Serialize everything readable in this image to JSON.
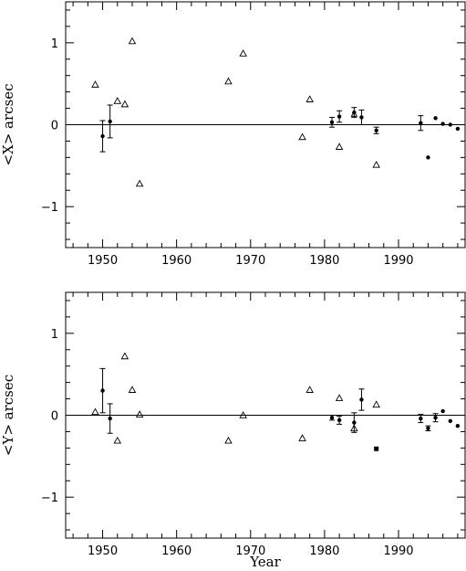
{
  "chart_data": [
    {
      "type": "scatter",
      "ylabel": "<X> arcsec",
      "xlabel": "",
      "xlim": [
        1945,
        1999
      ],
      "ylim": [
        -1.5,
        1.5
      ],
      "x_ticks": [
        "1950",
        "1960",
        "1970",
        "1980",
        "1990"
      ],
      "y_ticks": [
        "−1",
        "0",
        "1"
      ],
      "zero_line": true,
      "series": [
        {
          "marker": "open-triangle",
          "points": [
            {
              "x": 1949,
              "y": 0.49
            },
            {
              "x": 1952,
              "y": 0.29
            },
            {
              "x": 1953,
              "y": 0.25
            },
            {
              "x": 1954,
              "y": 1.02
            },
            {
              "x": 1955,
              "y": -0.72
            },
            {
              "x": 1967,
              "y": 0.53
            },
            {
              "x": 1969,
              "y": 0.87
            },
            {
              "x": 1977,
              "y": -0.15
            },
            {
              "x": 1978,
              "y": 0.31
            },
            {
              "x": 1982,
              "y": -0.27
            },
            {
              "x": 1987,
              "y": -0.49
            }
          ]
        },
        {
          "marker": "filled-circle",
          "points": [
            {
              "x": 1950,
              "y": -0.14,
              "err": 0.19
            },
            {
              "x": 1951,
              "y": 0.04,
              "err": 0.2
            },
            {
              "x": 1981,
              "y": 0.03,
              "err": 0.06
            },
            {
              "x": 1982,
              "y": 0.1,
              "err": 0.07
            },
            {
              "x": 1984,
              "y": 0.15,
              "err": 0.06
            },
            {
              "x": 1985,
              "y": 0.09,
              "err": 0.09
            },
            {
              "x": 1987,
              "y": -0.07,
              "err": 0.04
            },
            {
              "x": 1993,
              "y": 0.02,
              "err": 0.09
            },
            {
              "x": 1994,
              "y": -0.4,
              "err": 0
            },
            {
              "x": 1995,
              "y": 0.08,
              "err": 0
            },
            {
              "x": 1996,
              "y": 0.01,
              "err": 0
            },
            {
              "x": 1997,
              "y": 0.0,
              "err": 0
            },
            {
              "x": 1998,
              "y": -0.05,
              "err": 0
            }
          ]
        },
        {
          "marker": "open-triangle-small",
          "points": [
            {
              "x": 1984,
              "y": 0.13
            }
          ]
        }
      ]
    },
    {
      "type": "scatter",
      "ylabel": "<Y> arcsec",
      "xlabel": "Year",
      "xlim": [
        1945,
        1999
      ],
      "ylim": [
        -1.5,
        1.5
      ],
      "x_ticks": [
        "1950",
        "1960",
        "1970",
        "1980",
        "1990"
      ],
      "y_ticks": [
        "−1",
        "0",
        "1"
      ],
      "zero_line": true,
      "series": [
        {
          "marker": "open-triangle",
          "points": [
            {
              "x": 1949,
              "y": 0.04
            },
            {
              "x": 1952,
              "y": -0.31
            },
            {
              "x": 1953,
              "y": 0.72
            },
            {
              "x": 1954,
              "y": 0.31
            },
            {
              "x": 1955,
              "y": 0.01
            },
            {
              "x": 1967,
              "y": -0.31
            },
            {
              "x": 1969,
              "y": 0.0
            },
            {
              "x": 1977,
              "y": -0.28
            },
            {
              "x": 1978,
              "y": 0.31
            },
            {
              "x": 1982,
              "y": 0.21
            },
            {
              "x": 1984,
              "y": -0.16
            },
            {
              "x": 1987,
              "y": 0.13
            }
          ]
        },
        {
          "marker": "filled-circle",
          "points": [
            {
              "x": 1950,
              "y": 0.3,
              "err": 0.27
            },
            {
              "x": 1951,
              "y": -0.04,
              "err": 0.18
            },
            {
              "x": 1981,
              "y": -0.03,
              "err": 0.03
            },
            {
              "x": 1982,
              "y": -0.06,
              "err": 0.05
            },
            {
              "x": 1984,
              "y": -0.09,
              "err": 0.12
            },
            {
              "x": 1985,
              "y": 0.19,
              "err": 0.13
            },
            {
              "x": 1993,
              "y": -0.04,
              "err": 0.05
            },
            {
              "x": 1994,
              "y": -0.16,
              "err": 0.03
            },
            {
              "x": 1995,
              "y": -0.03,
              "err": 0.05
            },
            {
              "x": 1996,
              "y": 0.05,
              "err": 0
            },
            {
              "x": 1997,
              "y": -0.07,
              "err": 0
            },
            {
              "x": 1998,
              "y": -0.13,
              "err": 0
            }
          ]
        },
        {
          "marker": "filled-square",
          "points": [
            {
              "x": 1987,
              "y": -0.41
            }
          ]
        }
      ]
    }
  ]
}
